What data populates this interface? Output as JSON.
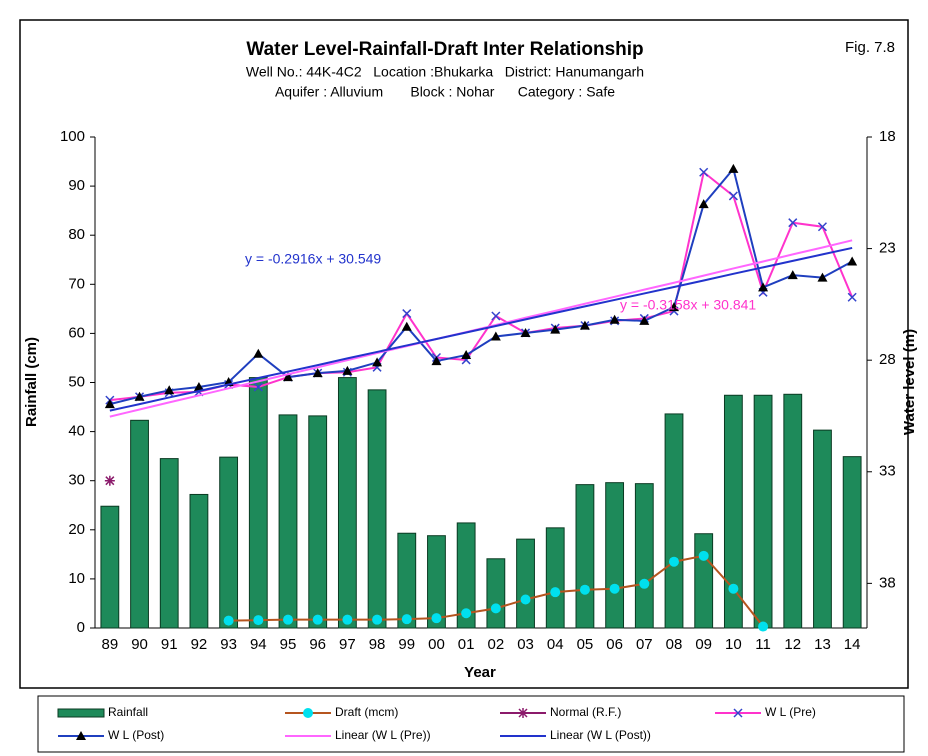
{
  "chart_data": {
    "type": "combo",
    "title": "Water Level-Rainfall-Draft Inter Relationship",
    "figure_label": "Fig. 7.8",
    "subtitle": [
      "Well No.: 44K-4C2   Location :Bhukarka   District: Hanumangarh",
      "Aquifer : Alluvium       Block : Nohar      Category : Safe"
    ],
    "x_label": "Year",
    "y_label": "Rainfall (cm)",
    "y2_label": "Water level (m)",
    "categories": [
      "89",
      "90",
      "91",
      "92",
      "93",
      "94",
      "95",
      "96",
      "97",
      "98",
      "99",
      "00",
      "01",
      "02",
      "03",
      "04",
      "05",
      "06",
      "07",
      "08",
      "09",
      "10",
      "11",
      "12",
      "13",
      "14"
    ],
    "ylim": [
      0,
      100
    ],
    "yticks": [
      0,
      10,
      20,
      30,
      40,
      50,
      60,
      70,
      80,
      90,
      100
    ],
    "y2lim": [
      40,
      18
    ],
    "y2ticks": [
      18,
      23,
      28,
      33,
      38
    ],
    "annotations": [
      {
        "text": "y = -0.2916x + 30.549",
        "color": "#2233cc"
      },
      {
        "text": "y = -0.3158x + 30.841",
        "color": "#ff33cc"
      }
    ],
    "series": [
      {
        "name": "Rainfall",
        "type": "bar",
        "color": "#1e8a5a",
        "values": [
          24.8,
          42.3,
          34.5,
          27.2,
          34.8,
          51,
          43.4,
          43.2,
          51,
          48.5,
          19.3,
          18.8,
          21.4,
          14.1,
          18.1,
          20.4,
          29.2,
          29.6,
          29.4,
          43.6,
          19.2,
          47.4,
          47.4,
          47.6,
          40.3,
          34.9
        ]
      },
      {
        "name": "Draft (mcm)",
        "type": "line",
        "color": "#b5551f",
        "marker": "circle",
        "marker_color": "#00e0ee",
        "values": [
          null,
          null,
          null,
          null,
          1.5,
          1.6,
          1.7,
          1.7,
          1.7,
          1.7,
          1.8,
          2,
          3,
          4,
          5.8,
          7.3,
          7.8,
          8,
          9,
          13.5,
          14.7,
          8,
          0.3,
          null,
          null,
          null
        ]
      },
      {
        "name": "Normal (R.F.)",
        "type": "line",
        "color": "#8b1a6b",
        "marker": "star",
        "marker_color": "#8b1a6b",
        "values": [
          30,
          null,
          null,
          null,
          null,
          null,
          null,
          null,
          null,
          null,
          null,
          null,
          null,
          null,
          null,
          null,
          null,
          null,
          null,
          null,
          null,
          null,
          null,
          null,
          null,
          null
        ]
      },
      {
        "name": "W L (Pre)",
        "type": "line",
        "axis": "y2",
        "color": "#ff33cc",
        "marker": "x",
        "marker_color": "#3344cc",
        "values": [
          29.79,
          29.64,
          29.46,
          29.42,
          29.09,
          29.2,
          28.76,
          28.58,
          28.54,
          28.32,
          25.91,
          27.88,
          27.99,
          26.02,
          26.78,
          26.56,
          26.45,
          26.24,
          26.13,
          25.8,
          19.58,
          20.64,
          24.96,
          21.84,
          22.02,
          25.18
        ]
      },
      {
        "name": "W L (Post)",
        "type": "line",
        "axis": "y2",
        "color": "#1f3fbf",
        "marker": "triangle",
        "marker_color": "#000000",
        "values": [
          29.97,
          29.64,
          29.35,
          29.2,
          28.98,
          27.71,
          28.76,
          28.58,
          28.48,
          28.1,
          26.5,
          28.04,
          27.77,
          26.94,
          26.78,
          26.63,
          26.45,
          26.19,
          26.24,
          25.62,
          21.01,
          19.43,
          24.74,
          24.19,
          24.3,
          23.58
        ]
      },
      {
        "name": "Linear (W L (Pre))",
        "type": "line",
        "axis": "y2",
        "color": "#ff66ff",
        "values": [
          30.53,
          30.21,
          29.89,
          29.58,
          29.26,
          28.95,
          28.63,
          28.32,
          28,
          27.68,
          27.37,
          27.05,
          26.74,
          26.42,
          26.1,
          25.79,
          25.47,
          25.16,
          24.84,
          24.53,
          24.21,
          23.89,
          23.58,
          23.26,
          22.95,
          22.63
        ]
      },
      {
        "name": "Linear (W L (Post))",
        "type": "line",
        "axis": "y2",
        "color": "#2233cc",
        "values": [
          30.26,
          29.97,
          29.67,
          29.38,
          29.09,
          28.8,
          28.51,
          28.22,
          27.92,
          27.63,
          27.34,
          27.05,
          26.76,
          26.47,
          26.17,
          25.88,
          25.59,
          25.3,
          25.01,
          24.72,
          24.43,
          24.13,
          23.84,
          23.55,
          23.26,
          22.97
        ]
      }
    ]
  }
}
